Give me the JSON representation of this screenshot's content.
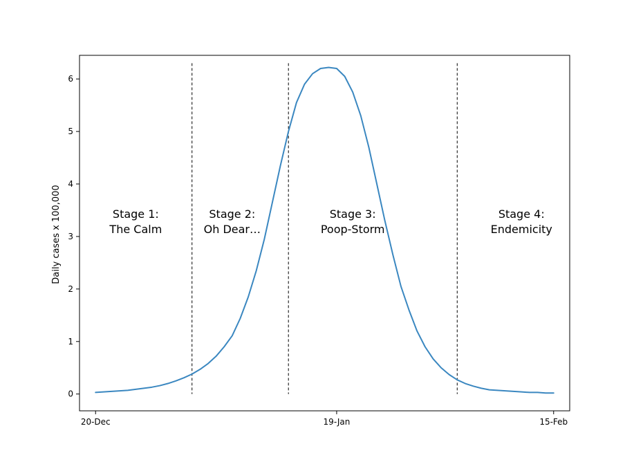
{
  "chart_data": {
    "type": "line",
    "title": "",
    "xlabel": "",
    "ylabel": "Daily cases x 100,000",
    "ylim": [
      -0.32,
      6.45
    ],
    "xlim": [
      "2021-12-18",
      "2022-02-17"
    ],
    "grid": false,
    "x_ticks": [
      {
        "date": "2021-12-20",
        "label": "20-Dec"
      },
      {
        "date": "2022-01-19",
        "label": "19-Jan"
      },
      {
        "date": "2022-02-15",
        "label": "15-Feb"
      }
    ],
    "y_ticks": [
      0,
      1,
      2,
      3,
      4,
      5,
      6
    ],
    "series": [
      {
        "color": "#3a87c0",
        "x": [
          "2021-12-20",
          "2021-12-21",
          "2021-12-22",
          "2021-12-23",
          "2021-12-24",
          "2021-12-25",
          "2021-12-26",
          "2021-12-27",
          "2021-12-28",
          "2021-12-29",
          "2021-12-30",
          "2021-12-31",
          "2022-01-01",
          "2022-01-02",
          "2022-01-03",
          "2022-01-04",
          "2022-01-05",
          "2022-01-06",
          "2022-01-07",
          "2022-01-08",
          "2022-01-09",
          "2022-01-10",
          "2022-01-11",
          "2022-01-12",
          "2022-01-13",
          "2022-01-14",
          "2022-01-15",
          "2022-01-16",
          "2022-01-17",
          "2022-01-18",
          "2022-01-19",
          "2022-01-20",
          "2022-01-21",
          "2022-01-22",
          "2022-01-23",
          "2022-01-24",
          "2022-01-25",
          "2022-01-26",
          "2022-01-27",
          "2022-01-28",
          "2022-01-29",
          "2022-01-30",
          "2022-01-31",
          "2022-02-01",
          "2022-02-02",
          "2022-02-03",
          "2022-02-04",
          "2022-02-05",
          "2022-02-06",
          "2022-02-07",
          "2022-02-08",
          "2022-02-09",
          "2022-02-10",
          "2022-02-11",
          "2022-02-12",
          "2022-02-13",
          "2022-02-14",
          "2022-02-15"
        ],
        "values": [
          0.03,
          0.04,
          0.05,
          0.06,
          0.07,
          0.09,
          0.11,
          0.13,
          0.16,
          0.2,
          0.25,
          0.31,
          0.38,
          0.47,
          0.58,
          0.72,
          0.9,
          1.11,
          1.44,
          1.85,
          2.35,
          2.95,
          3.65,
          4.35,
          5.0,
          5.55,
          5.9,
          6.1,
          6.2,
          6.22,
          6.2,
          6.05,
          5.75,
          5.3,
          4.7,
          4.0,
          3.3,
          2.65,
          2.05,
          1.6,
          1.2,
          0.9,
          0.67,
          0.5,
          0.37,
          0.27,
          0.2,
          0.15,
          0.11,
          0.08,
          0.07,
          0.06,
          0.05,
          0.04,
          0.03,
          0.03,
          0.02,
          0.02
        ]
      }
    ],
    "vlines": [
      "2022-01-01",
      "2022-01-13",
      "2022-02-03"
    ],
    "annotations": [
      {
        "date": "2021-12-25",
        "lines": [
          "Stage 1:",
          "The Calm"
        ]
      },
      {
        "date": "2022-01-06",
        "lines": [
          "Stage 2:",
          "Oh Dear…"
        ]
      },
      {
        "date": "2022-01-21",
        "lines": [
          "Stage 3:",
          "Poop-Storm"
        ]
      },
      {
        "date": "2022-02-11",
        "lines": [
          "Stage 4:",
          "Endemicity"
        ]
      }
    ],
    "annotation_y": 3.2
  }
}
